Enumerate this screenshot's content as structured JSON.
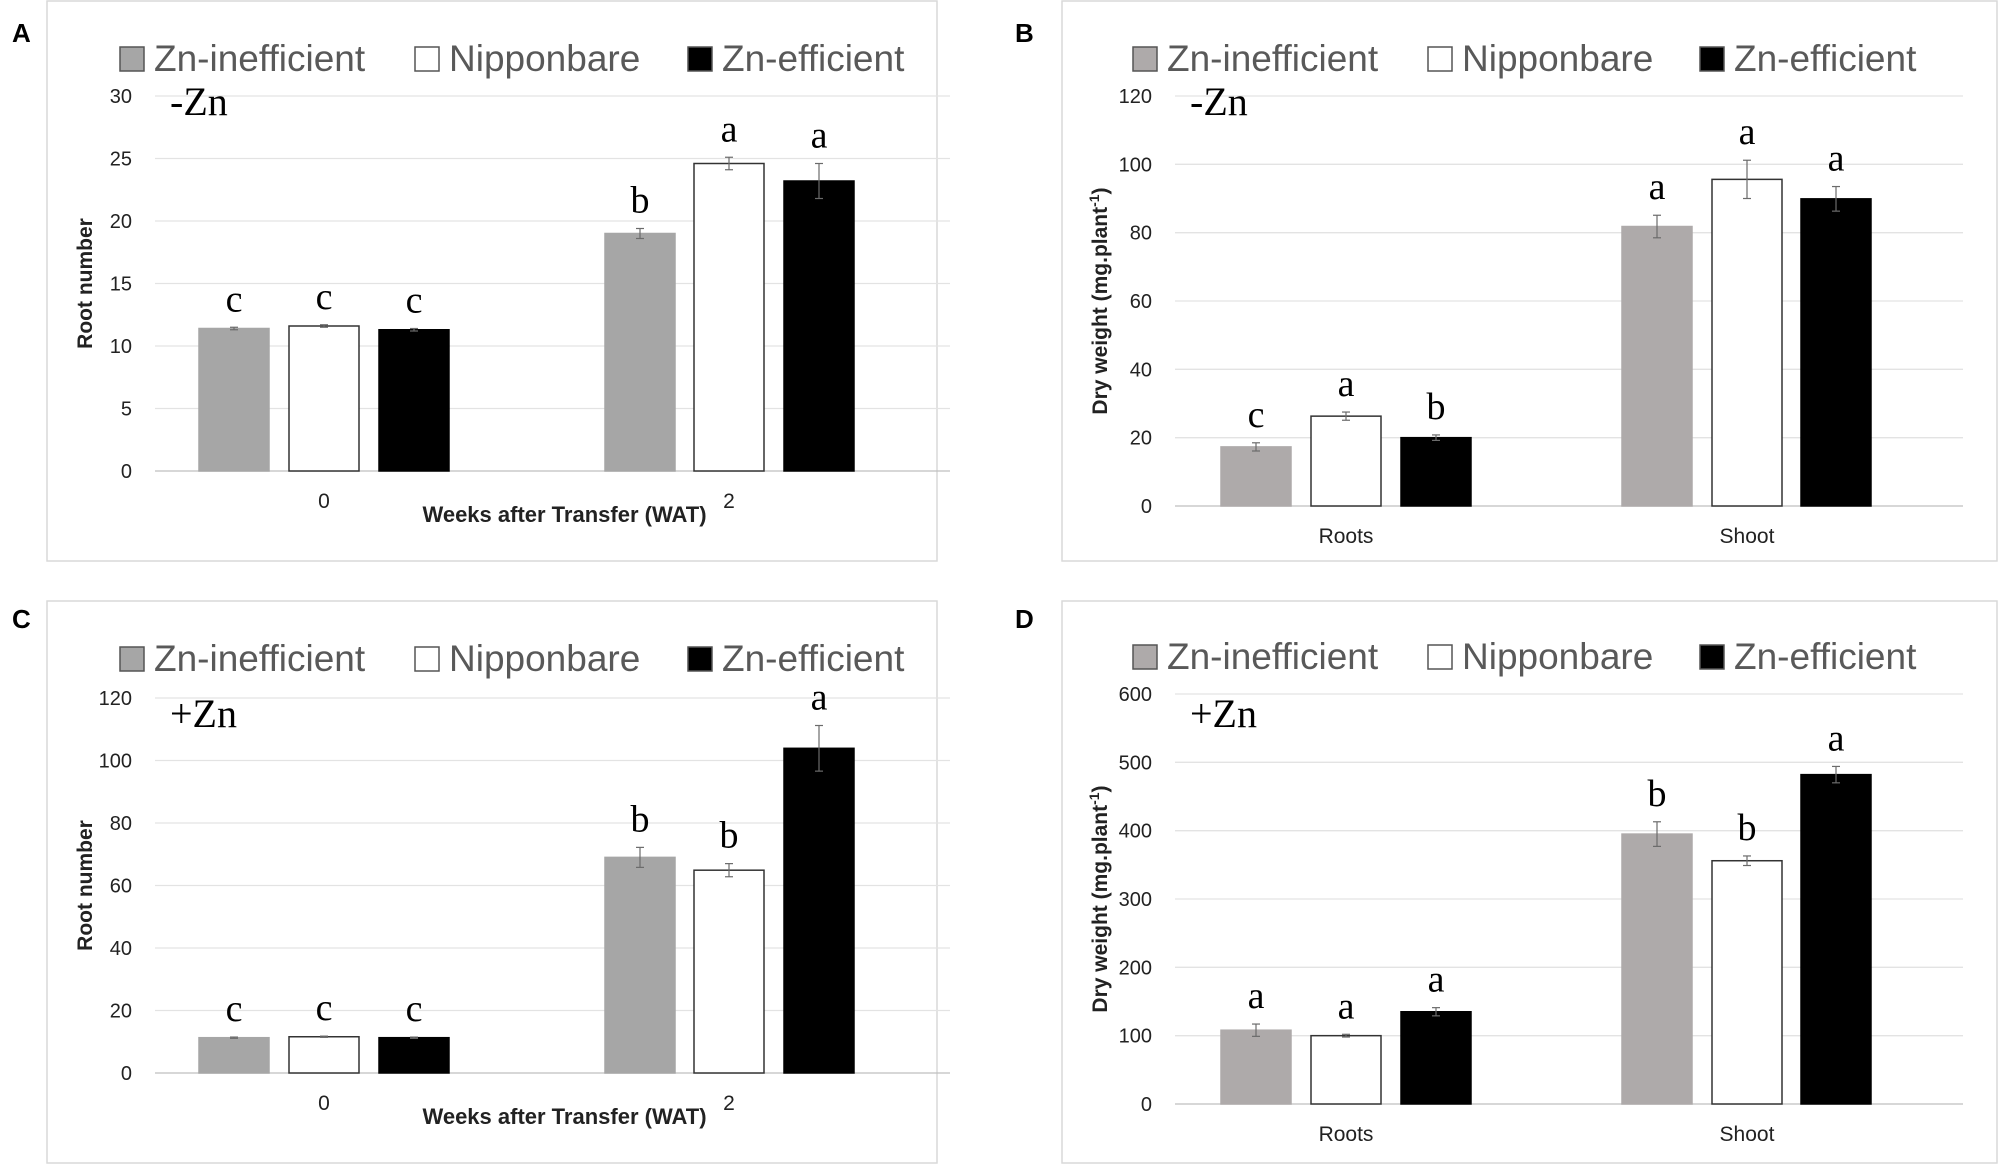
{
  "figure": {
    "panels": [
      {
        "label": "A"
      },
      {
        "label": "B"
      },
      {
        "label": "C"
      },
      {
        "label": "D"
      }
    ]
  },
  "chart_data": [
    {
      "panel": "A",
      "type": "bar",
      "condition": "-Zn",
      "title": "",
      "xlabel": "Weeks after Transfer (WAT)",
      "ylabel": "Root number",
      "ylim": [
        0,
        30
      ],
      "yticks": [
        0,
        5,
        10,
        15,
        20,
        25,
        30
      ],
      "grid": true,
      "legend": "top",
      "categories": [
        "0",
        "2"
      ],
      "series": [
        {
          "name": "Zn-inefficient",
          "color": "#a6a6a6",
          "values": [
            11.4,
            19.0
          ],
          "errors": [
            0.1,
            0.4
          ],
          "letters": [
            "c",
            "b"
          ]
        },
        {
          "name": "Nipponbare",
          "color": "#ffffff",
          "values": [
            11.6,
            24.6
          ],
          "errors": [
            0.1,
            0.5
          ],
          "letters": [
            "c",
            "a"
          ]
        },
        {
          "name": "Zn-efficient",
          "color": "#000000",
          "values": [
            11.3,
            23.2
          ],
          "errors": [
            0.1,
            1.4
          ],
          "letters": [
            "c",
            "a"
          ]
        }
      ]
    },
    {
      "panel": "B",
      "type": "bar",
      "condition": "-Zn",
      "title": "",
      "xlabel": "",
      "ylabel": "Dry weight (mg.plant",
      "ylabel_sup": "-1",
      "ylabel_end": ")",
      "ylim": [
        0,
        120
      ],
      "yticks": [
        0,
        20,
        40,
        60,
        80,
        100,
        120
      ],
      "grid": true,
      "legend": "top",
      "categories": [
        "Roots",
        "Shoot"
      ],
      "series": [
        {
          "name": "Zn-inefficient",
          "color": "#aeaaaa",
          "values": [
            17.3,
            81.8
          ],
          "errors": [
            1.2,
            3.3
          ],
          "letters": [
            "c",
            "a"
          ]
        },
        {
          "name": "Nipponbare",
          "color": "#ffffff",
          "values": [
            26.3,
            95.6
          ],
          "errors": [
            1.2,
            5.6
          ],
          "letters": [
            "a",
            "a"
          ]
        },
        {
          "name": "Zn-efficient",
          "color": "#000000",
          "values": [
            20.0,
            89.9
          ],
          "errors": [
            0.8,
            3.6
          ],
          "letters": [
            "b",
            "a"
          ]
        }
      ]
    },
    {
      "panel": "C",
      "type": "bar",
      "condition": "+Zn",
      "title": "",
      "xlabel": "Weeks after Transfer (WAT)",
      "ylabel": "Root number",
      "ylim": [
        0,
        120
      ],
      "yticks": [
        0,
        20,
        40,
        60,
        80,
        100,
        120
      ],
      "grid": true,
      "legend": "top",
      "categories": [
        "0",
        "2"
      ],
      "series": [
        {
          "name": "Zn-inefficient",
          "color": "#a6a6a6",
          "values": [
            11.3,
            69.0
          ],
          "errors": [
            0.2,
            3.2
          ],
          "letters": [
            "c",
            "b"
          ]
        },
        {
          "name": "Nipponbare",
          "color": "#ffffff",
          "values": [
            11.6,
            64.9
          ],
          "errors": [
            0.2,
            2.1
          ],
          "letters": [
            "c",
            "b"
          ]
        },
        {
          "name": "Zn-efficient",
          "color": "#000000",
          "values": [
            11.3,
            103.9
          ],
          "errors": [
            0.2,
            7.3
          ],
          "letters": [
            "c",
            "a"
          ]
        }
      ]
    },
    {
      "panel": "D",
      "type": "bar",
      "condition": "+Zn",
      "title": "",
      "xlabel": "",
      "ylabel": "Dry weight (mg.plant",
      "ylabel_sup": "-1",
      "ylabel_end": ")",
      "ylim": [
        0,
        600
      ],
      "yticks": [
        0,
        100,
        200,
        300,
        400,
        500,
        600
      ],
      "grid": true,
      "legend": "top",
      "categories": [
        "Roots",
        "Shoot"
      ],
      "series": [
        {
          "name": "Zn-inefficient",
          "color": "#aeaaaa",
          "values": [
            108,
            395
          ],
          "errors": [
            9,
            18
          ],
          "letters": [
            "a",
            "b"
          ]
        },
        {
          "name": "Nipponbare",
          "color": "#ffffff",
          "values": [
            100,
            356
          ],
          "errors": [
            2,
            7
          ],
          "letters": [
            "a",
            "b"
          ]
        },
        {
          "name": "Zn-efficient",
          "color": "#000000",
          "values": [
            135,
            482
          ],
          "errors": [
            6,
            12
          ],
          "letters": [
            "a",
            "a"
          ]
        }
      ]
    }
  ]
}
